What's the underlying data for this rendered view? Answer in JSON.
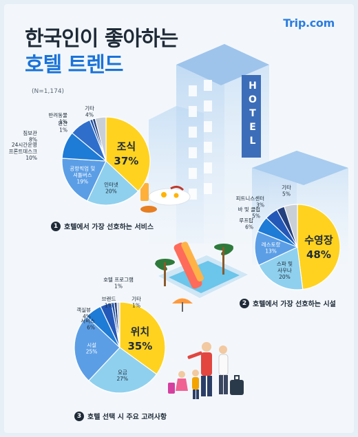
{
  "brand": "Trip.com",
  "title": {
    "line1": "한국인이 좋아하는",
    "line2": "호텔 트렌드"
  },
  "sample_size": "(N=1,174)",
  "building_sign": [
    "H",
    "O",
    "T",
    "E",
    "L"
  ],
  "chart_data": [
    {
      "type": "pie",
      "id": "services",
      "caption_number": "1",
      "caption": "호텔에서 가장 선호하는 서비스",
      "slices": [
        {
          "label": "조식",
          "value": 37,
          "color": "#ffd21f"
        },
        {
          "label": "인터넷",
          "value": 20,
          "color": "#8fd0ee"
        },
        {
          "label": "공항픽업 및 셔틀버스",
          "value": 19,
          "color": "#5b9ee6"
        },
        {
          "label": "24시간운영 프론트데스크",
          "value": 10,
          "color": "#1e7bd6"
        },
        {
          "label": "짐보관",
          "value": 8,
          "color": "#2f6fcb"
        },
        {
          "label": "환전",
          "value": 1,
          "color": "#1b4fa5"
        },
        {
          "label": "반려동물",
          "value": 1,
          "color": "#24407e"
        },
        {
          "label": "기타",
          "value": 4,
          "color": "#c9cfd6"
        }
      ]
    },
    {
      "type": "pie",
      "id": "facilities",
      "caption_number": "2",
      "caption": "호텔에서 가장 선호하는 시설",
      "slices": [
        {
          "label": "수영장",
          "value": 48,
          "color": "#ffd21f"
        },
        {
          "label": "스파 및 사우나",
          "value": 20,
          "color": "#8fd0ee"
        },
        {
          "label": "레스토랑",
          "value": 13,
          "color": "#5b9ee6"
        },
        {
          "label": "루프탑",
          "value": 6,
          "color": "#1e7bd6"
        },
        {
          "label": "바 및 클럽",
          "value": 5,
          "color": "#2458b8"
        },
        {
          "label": "피트니스센터",
          "value": 3,
          "color": "#24407e"
        },
        {
          "label": "기타",
          "value": 5,
          "color": "#c9cfd6"
        }
      ]
    },
    {
      "type": "pie",
      "id": "factors",
      "caption_number": "3",
      "caption": "호텔 선택 시 주요 고려사항",
      "slices": [
        {
          "label": "위치",
          "value": 35,
          "color": "#ffd21f"
        },
        {
          "label": "요금",
          "value": 27,
          "color": "#8fd0ee"
        },
        {
          "label": "시설",
          "value": 25,
          "color": "#5b9ee6"
        },
        {
          "label": "서비스",
          "value": 6,
          "color": "#1e7bd6"
        },
        {
          "label": "객실뷰",
          "value": 4,
          "color": "#2458b8"
        },
        {
          "label": "브랜드",
          "value": 1,
          "color": "#1b4fa5"
        },
        {
          "label": "호텔 프로그램",
          "value": 1,
          "color": "#24407e"
        },
        {
          "label": "기타",
          "value": 1,
          "color": "#c9cfd6"
        }
      ]
    }
  ]
}
